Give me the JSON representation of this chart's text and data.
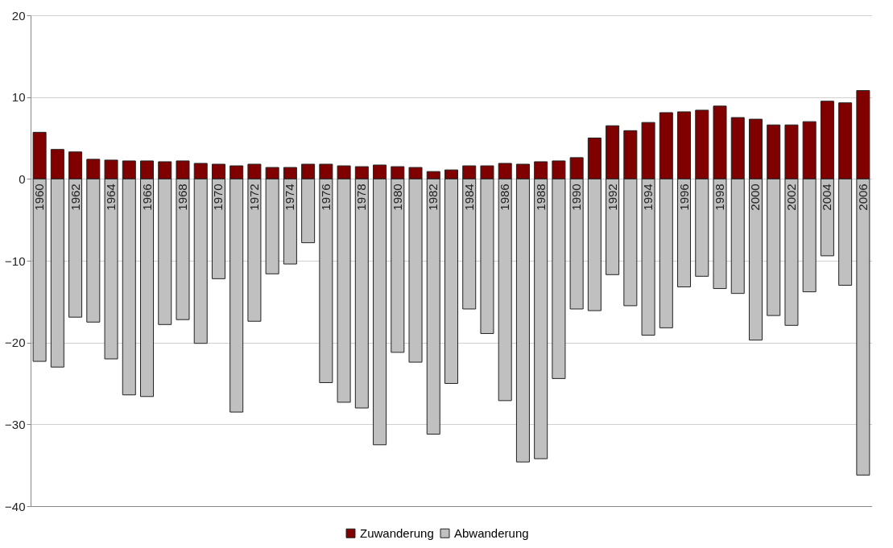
{
  "chart_data": {
    "type": "bar",
    "stacked": true,
    "categories": [
      "1960",
      null,
      "1962",
      null,
      "1964",
      null,
      "1966",
      null,
      "1968",
      null,
      "1970",
      null,
      "1972",
      null,
      "1974",
      null,
      "1976",
      null,
      "1978",
      null,
      "1980",
      null,
      "1982",
      null,
      "1984",
      null,
      "1986",
      null,
      "1988",
      null,
      "1990",
      null,
      "1992",
      null,
      "1994",
      null,
      "1996",
      null,
      "1998",
      null,
      "2000",
      null,
      "2002",
      null,
      "2004",
      null,
      "2006"
    ],
    "series": [
      {
        "name": "Zuwanderung",
        "color": "#800000",
        "values": [
          5.7,
          3.6,
          3.3,
          2.4,
          2.3,
          2.2,
          2.2,
          2.1,
          2.2,
          1.9,
          1.8,
          1.6,
          1.8,
          1.4,
          1.4,
          1.8,
          1.8,
          1.6,
          1.5,
          1.7,
          1.5,
          1.4,
          0.9,
          1.1,
          1.6,
          1.6,
          1.9,
          1.8,
          2.1,
          2.2,
          2.6,
          5.0,
          6.5,
          5.9,
          6.9,
          8.1,
          8.2,
          8.4,
          8.9,
          7.5,
          7.3,
          6.6,
          6.6,
          7.0,
          9.5,
          9.3,
          10.8
        ]
      },
      {
        "name": "Abwanderung",
        "color": "#c0c0c0",
        "values": [
          -22.3,
          -23.0,
          -16.9,
          -17.5,
          -22.0,
          -26.4,
          -26.6,
          -17.8,
          -17.2,
          -20.1,
          -12.2,
          -28.5,
          -17.4,
          -11.6,
          -10.4,
          -7.8,
          -24.9,
          -27.3,
          -28.0,
          -32.5,
          -21.2,
          -22.4,
          -31.2,
          -25.0,
          -15.9,
          -18.9,
          -27.1,
          -34.6,
          -34.2,
          -24.4,
          -15.9,
          -16.1,
          -11.7,
          -15.5,
          -19.1,
          -18.2,
          -13.2,
          -11.9,
          -13.4,
          -14.0,
          -19.7,
          -16.7,
          -17.9,
          -13.8,
          -9.4,
          -13.0,
          -36.2
        ]
      }
    ],
    "ylim": [
      -40,
      20
    ],
    "yticks": [
      -40,
      -30,
      -20,
      -10,
      0,
      10,
      20
    ],
    "grid": "y",
    "legend": "bottom"
  }
}
